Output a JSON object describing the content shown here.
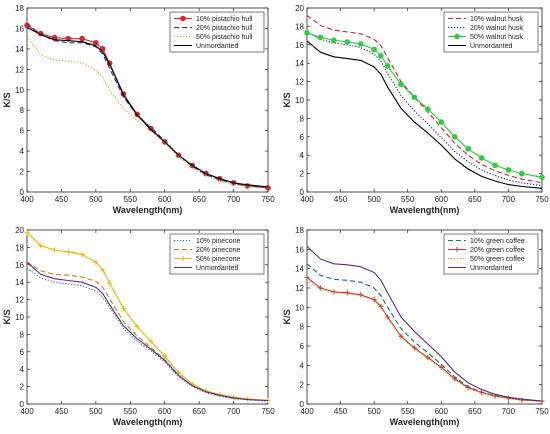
{
  "chart_data": [
    {
      "type": "line",
      "panel": "top-left",
      "xlabel": "Wavelength(nm)",
      "ylabel": "K/S",
      "xlim": [
        400,
        750
      ],
      "ylim": [
        0,
        18
      ],
      "xticks": [
        400,
        450,
        500,
        550,
        600,
        650,
        700,
        750
      ],
      "yticks": [
        0,
        2,
        4,
        6,
        8,
        10,
        12,
        14,
        16,
        18
      ],
      "legend_position": "top-right",
      "x": [
        400,
        420,
        440,
        460,
        480,
        500,
        510,
        520,
        540,
        560,
        580,
        600,
        620,
        640,
        660,
        680,
        700,
        720,
        750
      ],
      "series": [
        {
          "name": "10% pistachio hull",
          "color": "#d62728",
          "style": "solid",
          "marker": "circle",
          "values": [
            16.3,
            15.5,
            15.1,
            15.0,
            15.0,
            14.6,
            14.0,
            12.6,
            9.6,
            7.6,
            6.2,
            4.9,
            3.6,
            2.6,
            1.8,
            1.3,
            0.9,
            0.6,
            0.4
          ]
        },
        {
          "name": "20% pistachio hull",
          "color": "#1f3b8c",
          "style": "dashed",
          "marker": "none",
          "values": [
            16.5,
            15.4,
            14.8,
            14.6,
            14.6,
            14.2,
            13.5,
            12.1,
            9.3,
            7.5,
            6.3,
            5.0,
            3.6,
            2.5,
            1.7,
            1.2,
            0.8,
            0.6,
            0.4
          ]
        },
        {
          "name": "50% pistachio hull",
          "color": "#e8a020",
          "style": "dotted",
          "marker": "none",
          "values": [
            15.2,
            13.4,
            12.9,
            12.8,
            12.6,
            11.9,
            11.2,
            10.0,
            8.2,
            7.0,
            6.0,
            4.8,
            3.4,
            2.3,
            1.6,
            1.1,
            0.8,
            0.5,
            0.4
          ]
        },
        {
          "name": "Unmordanted",
          "color": "#000000",
          "style": "solid",
          "marker": "none",
          "values": [
            16.1,
            15.4,
            14.9,
            14.8,
            14.7,
            14.3,
            13.7,
            12.5,
            9.5,
            7.5,
            6.1,
            4.9,
            3.6,
            2.6,
            1.8,
            1.3,
            0.9,
            0.7,
            0.5
          ]
        }
      ]
    },
    {
      "type": "line",
      "panel": "top-right",
      "xlabel": "Wavelength(nm)",
      "ylabel": "K/S",
      "xlim": [
        400,
        750
      ],
      "ylim": [
        0,
        20
      ],
      "xticks": [
        400,
        450,
        500,
        550,
        600,
        650,
        700,
        750
      ],
      "yticks": [
        0,
        2,
        4,
        6,
        8,
        10,
        12,
        14,
        16,
        18,
        20
      ],
      "legend_position": "top-right",
      "x": [
        400,
        420,
        440,
        460,
        480,
        500,
        510,
        520,
        540,
        560,
        580,
        600,
        620,
        640,
        660,
        680,
        700,
        720,
        750
      ],
      "series": [
        {
          "name": "10% walnut husk",
          "color": "#c62828",
          "style": "dashed",
          "marker": "none",
          "values": [
            19.2,
            18.1,
            17.6,
            17.4,
            17.2,
            16.6,
            15.9,
            14.6,
            12.0,
            10.3,
            8.7,
            7.0,
            5.3,
            4.0,
            3.0,
            2.3,
            1.8,
            1.4,
            1.0
          ]
        },
        {
          "name": "20% walnut husk",
          "color": "#1a237e",
          "style": "dotted",
          "marker": "none",
          "values": [
            17.4,
            16.6,
            16.2,
            16.0,
            15.7,
            15.0,
            14.2,
            12.9,
            10.5,
            8.8,
            7.4,
            5.9,
            4.4,
            3.3,
            2.4,
            1.8,
            1.3,
            1.0,
            0.7
          ]
        },
        {
          "name": "50% walnut husk",
          "color": "#2ecc40",
          "style": "solid",
          "marker": "circle",
          "values": [
            17.3,
            16.8,
            16.5,
            16.3,
            16.1,
            15.5,
            14.8,
            13.7,
            11.7,
            10.3,
            9.0,
            7.6,
            6.0,
            4.7,
            3.7,
            2.9,
            2.4,
            2.0,
            1.6
          ]
        },
        {
          "name": "Unmordanted",
          "color": "#000000",
          "style": "solid",
          "marker": "none",
          "values": [
            16.4,
            15.2,
            14.7,
            14.5,
            14.3,
            13.6,
            12.8,
            11.4,
            9.1,
            7.6,
            6.4,
            5.1,
            3.6,
            2.5,
            1.7,
            1.2,
            0.8,
            0.6,
            0.4
          ]
        }
      ]
    },
    {
      "type": "line",
      "panel": "bottom-left",
      "xlabel": "Wavelength(nm)",
      "ylabel": "K/S",
      "xlim": [
        400,
        750
      ],
      "ylim": [
        0,
        20
      ],
      "xticks": [
        400,
        450,
        500,
        550,
        600,
        650,
        700,
        750
      ],
      "yticks": [
        0,
        2,
        4,
        6,
        8,
        10,
        12,
        14,
        16,
        18,
        20
      ],
      "legend_position": "top-right",
      "x": [
        400,
        420,
        440,
        460,
        480,
        500,
        510,
        520,
        540,
        560,
        580,
        600,
        620,
        640,
        660,
        680,
        700,
        720,
        750
      ],
      "series": [
        {
          "name": "10% pinecone",
          "color": "#1f77b4",
          "style": "dotted",
          "marker": "none",
          "values": [
            15.6,
            14.5,
            14.0,
            13.8,
            13.6,
            13.0,
            12.3,
            11.1,
            8.7,
            7.2,
            6.1,
            4.8,
            3.1,
            2.0,
            1.3,
            0.9,
            0.6,
            0.5,
            0.3
          ]
        },
        {
          "name": "20% pinecone",
          "color": "#b8860b",
          "style": "dashed",
          "marker": "none",
          "values": [
            16.3,
            15.3,
            14.9,
            14.8,
            14.6,
            14.1,
            13.4,
            12.1,
            9.5,
            7.8,
            6.5,
            5.1,
            3.3,
            2.1,
            1.4,
            1.0,
            0.7,
            0.5,
            0.4
          ]
        },
        {
          "name": "50% pinecone",
          "color": "#f0b400",
          "style": "solid",
          "marker": "plus",
          "values": [
            19.7,
            18.2,
            17.7,
            17.5,
            17.2,
            16.3,
            15.4,
            13.9,
            11.0,
            8.9,
            7.2,
            5.5,
            3.6,
            2.3,
            1.5,
            1.1,
            0.8,
            0.6,
            0.4
          ]
        },
        {
          "name": "Unmordanted",
          "color": "#5b2c83",
          "style": "solid",
          "marker": "none",
          "values": [
            16.3,
            14.9,
            14.4,
            14.2,
            14.0,
            13.4,
            12.7,
            11.4,
            9.0,
            7.5,
            6.3,
            5.0,
            3.3,
            2.1,
            1.4,
            1.0,
            0.7,
            0.5,
            0.4
          ]
        }
      ]
    },
    {
      "type": "line",
      "panel": "bottom-right",
      "xlabel": "Wavelength(nm)",
      "ylabel": "K/S",
      "xlim": [
        400,
        750
      ],
      "ylim": [
        0,
        18
      ],
      "xticks": [
        400,
        450,
        500,
        550,
        600,
        650,
        700,
        750
      ],
      "yticks": [
        0,
        2,
        4,
        6,
        8,
        10,
        12,
        14,
        16,
        18
      ],
      "legend_position": "top-right",
      "x": [
        400,
        420,
        440,
        460,
        480,
        500,
        510,
        520,
        540,
        560,
        580,
        600,
        620,
        640,
        660,
        680,
        700,
        720,
        750
      ],
      "series": [
        {
          "name": "10% green coffee",
          "color": "#1a6e8a",
          "style": "dashed",
          "marker": "none",
          "values": [
            14.5,
            13.3,
            12.9,
            12.8,
            12.6,
            12.0,
            11.2,
            10.0,
            7.8,
            6.4,
            5.3,
            4.1,
            2.8,
            1.8,
            1.2,
            0.9,
            0.6,
            0.5,
            0.3
          ]
        },
        {
          "name": "20% green coffee",
          "color": "#c0392b",
          "style": "solid",
          "marker": "plus",
          "values": [
            13.1,
            12.0,
            11.6,
            11.5,
            11.3,
            10.8,
            10.1,
            9.0,
            7.0,
            5.8,
            4.8,
            3.8,
            2.6,
            1.7,
            1.2,
            0.8,
            0.6,
            0.4,
            0.3
          ]
        },
        {
          "name": "50% green coffee",
          "color": "#f0a020",
          "style": "dotted",
          "marker": "none",
          "values": [
            12.8,
            11.8,
            11.5,
            11.4,
            11.2,
            10.7,
            10.0,
            8.9,
            6.9,
            5.7,
            4.7,
            3.7,
            2.5,
            1.6,
            1.1,
            0.8,
            0.6,
            0.4,
            0.3
          ]
        },
        {
          "name": "Unmordanted",
          "color": "#5b2c83",
          "style": "solid",
          "marker": "none",
          "values": [
            16.3,
            15.0,
            14.5,
            14.4,
            14.2,
            13.6,
            12.8,
            11.5,
            9.0,
            7.5,
            6.2,
            4.9,
            3.3,
            2.2,
            1.5,
            1.0,
            0.7,
            0.5,
            0.3
          ]
        }
      ]
    }
  ]
}
